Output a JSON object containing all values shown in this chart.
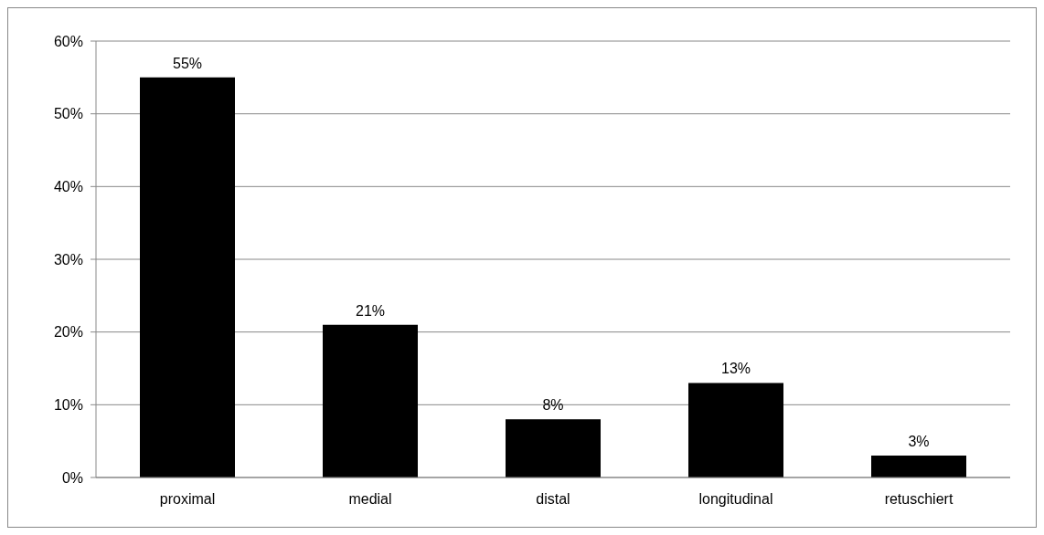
{
  "chart_data": {
    "type": "bar",
    "categories": [
      "proximal",
      "medial",
      "distal",
      "longitudinal",
      "retuschiert"
    ],
    "values": [
      55,
      21,
      8,
      13,
      3
    ],
    "value_labels": [
      "55%",
      "21%",
      "8%",
      "13%",
      "3%"
    ],
    "color": "#000000",
    "ylim": [
      0,
      60
    ],
    "yticks": [
      {
        "value": 0,
        "label": "0%"
      },
      {
        "value": 10,
        "label": "10%"
      },
      {
        "value": 20,
        "label": "20%"
      },
      {
        "value": 30,
        "label": "30%"
      },
      {
        "value": 40,
        "label": "40%"
      },
      {
        "value": 50,
        "label": "50%"
      },
      {
        "value": 60,
        "label": "60%"
      }
    ],
    "grid": "y"
  }
}
